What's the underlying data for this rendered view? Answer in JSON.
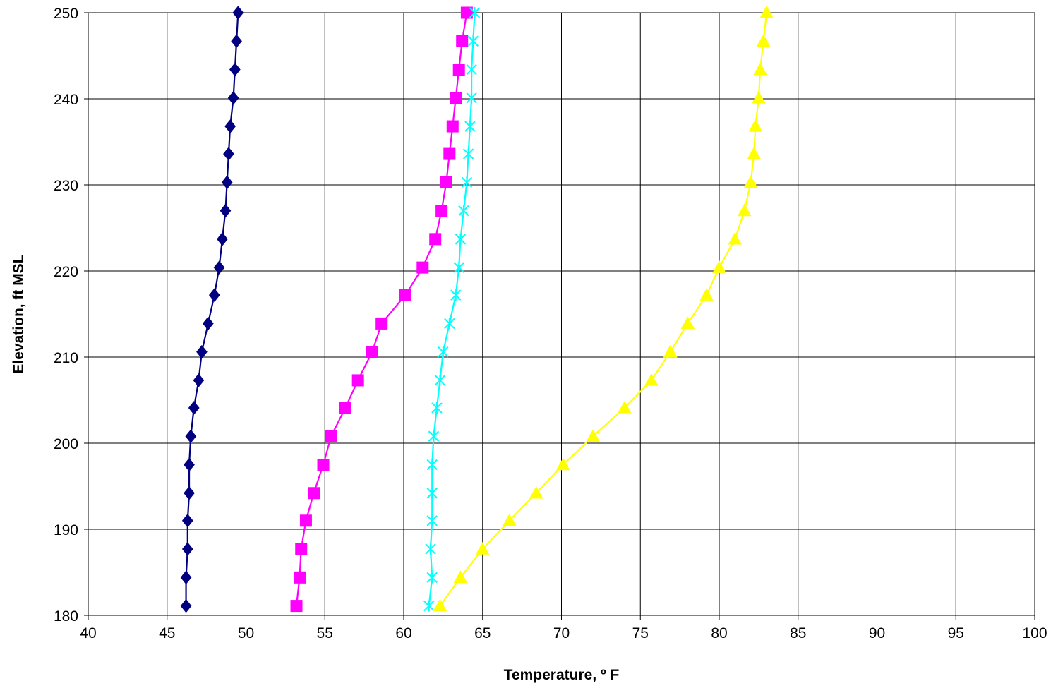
{
  "chart_data": {
    "type": "line",
    "title": "",
    "xlabel": "Temperature, º F",
    "ylabel": "Elevation, ft MSL",
    "xlim": [
      40,
      100
    ],
    "ylim": [
      180,
      250
    ],
    "x_ticks": [
      40,
      45,
      50,
      55,
      60,
      65,
      70,
      75,
      80,
      85,
      90,
      95,
      100
    ],
    "y_ticks": [
      180,
      190,
      200,
      210,
      220,
      230,
      240,
      250
    ],
    "grid": true,
    "legend": "none",
    "series": [
      {
        "color": "#000080",
        "marker": "diamond",
        "points": [
          [
            46.2,
            181.1
          ],
          [
            46.2,
            184.4
          ],
          [
            46.3,
            187.7
          ],
          [
            46.3,
            191.0
          ],
          [
            46.4,
            194.2
          ],
          [
            46.4,
            197.5
          ],
          [
            46.5,
            200.8
          ],
          [
            46.7,
            204.1
          ],
          [
            47.0,
            207.3
          ],
          [
            47.2,
            210.6
          ],
          [
            47.6,
            213.9
          ],
          [
            48.0,
            217.2
          ],
          [
            48.3,
            220.4
          ],
          [
            48.5,
            223.7
          ],
          [
            48.7,
            227.0
          ],
          [
            48.8,
            230.3
          ],
          [
            48.9,
            233.6
          ],
          [
            49.0,
            236.8
          ],
          [
            49.2,
            240.1
          ],
          [
            49.3,
            243.4
          ],
          [
            49.4,
            246.7
          ],
          [
            49.5,
            250.0
          ]
        ]
      },
      {
        "color": "#ff00ff",
        "marker": "square",
        "points": [
          [
            53.2,
            181.1
          ],
          [
            53.4,
            184.4
          ],
          [
            53.5,
            187.7
          ],
          [
            53.8,
            191.0
          ],
          [
            54.3,
            194.2
          ],
          [
            54.9,
            197.5
          ],
          [
            55.4,
            200.8
          ],
          [
            56.3,
            204.1
          ],
          [
            57.1,
            207.3
          ],
          [
            58.0,
            210.6
          ],
          [
            58.6,
            213.9
          ],
          [
            60.1,
            217.2
          ],
          [
            61.2,
            220.4
          ],
          [
            62.0,
            223.7
          ],
          [
            62.4,
            227.0
          ],
          [
            62.7,
            230.3
          ],
          [
            62.9,
            233.6
          ],
          [
            63.1,
            236.8
          ],
          [
            63.3,
            240.1
          ],
          [
            63.5,
            243.4
          ],
          [
            63.7,
            246.7
          ],
          [
            64.0,
            250.0
          ]
        ]
      },
      {
        "color": "#00ffff",
        "marker": "x",
        "points": [
          [
            61.6,
            181.1
          ],
          [
            61.8,
            184.4
          ],
          [
            61.7,
            187.7
          ],
          [
            61.8,
            191.0
          ],
          [
            61.8,
            194.2
          ],
          [
            61.8,
            197.5
          ],
          [
            61.9,
            200.8
          ],
          [
            62.1,
            204.1
          ],
          [
            62.3,
            207.3
          ],
          [
            62.5,
            210.6
          ],
          [
            62.9,
            213.9
          ],
          [
            63.3,
            217.2
          ],
          [
            63.5,
            220.4
          ],
          [
            63.6,
            223.7
          ],
          [
            63.8,
            227.0
          ],
          [
            64.0,
            230.3
          ],
          [
            64.1,
            233.6
          ],
          [
            64.2,
            236.8
          ],
          [
            64.3,
            240.1
          ],
          [
            64.3,
            243.4
          ],
          [
            64.4,
            246.7
          ],
          [
            64.5,
            250.0
          ]
        ]
      },
      {
        "color": "#ffff00",
        "marker": "triangle",
        "points": [
          [
            62.3,
            181.1
          ],
          [
            63.6,
            184.4
          ],
          [
            65.0,
            187.7
          ],
          [
            66.7,
            191.0
          ],
          [
            68.4,
            194.2
          ],
          [
            70.1,
            197.5
          ],
          [
            72.0,
            200.8
          ],
          [
            74.0,
            204.1
          ],
          [
            75.7,
            207.3
          ],
          [
            76.9,
            210.6
          ],
          [
            78.0,
            213.9
          ],
          [
            79.2,
            217.2
          ],
          [
            80.0,
            220.4
          ],
          [
            81.0,
            223.7
          ],
          [
            81.6,
            227.0
          ],
          [
            82.0,
            230.3
          ],
          [
            82.2,
            233.6
          ],
          [
            82.3,
            236.8
          ],
          [
            82.5,
            240.1
          ],
          [
            82.6,
            243.4
          ],
          [
            82.8,
            246.7
          ],
          [
            83.0,
            250.0
          ]
        ]
      }
    ]
  }
}
